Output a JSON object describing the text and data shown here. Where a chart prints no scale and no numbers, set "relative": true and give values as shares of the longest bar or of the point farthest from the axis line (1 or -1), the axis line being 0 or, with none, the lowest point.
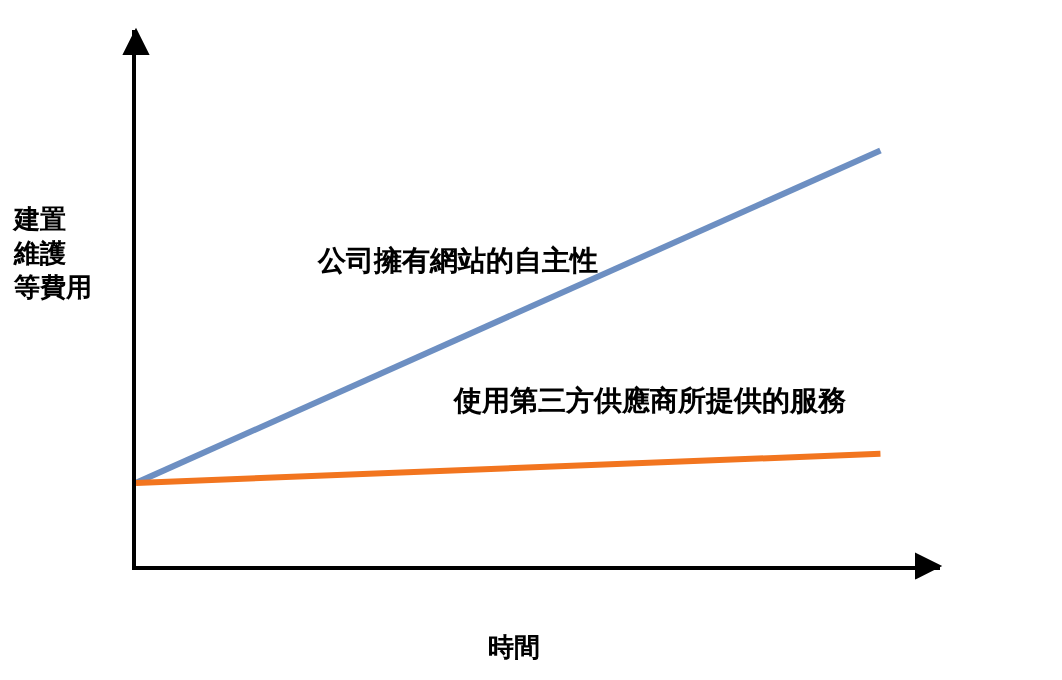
{
  "chart_data": {
    "type": "line",
    "relative": true,
    "xlabel": "時間",
    "ylabel": "建置維護等費用",
    "categories": [
      null,
      null
    ],
    "legend": false,
    "series": [
      {
        "name": "公司擁有網站的自主性",
        "color": "#6d8fc2",
        "values": [
          0.2,
          1
        ]
      },
      {
        "name": "使用第三方供應商所提供的服務",
        "color": "#f2751f",
        "values": [
          0.2,
          0.27
        ]
      }
    ]
  }
}
